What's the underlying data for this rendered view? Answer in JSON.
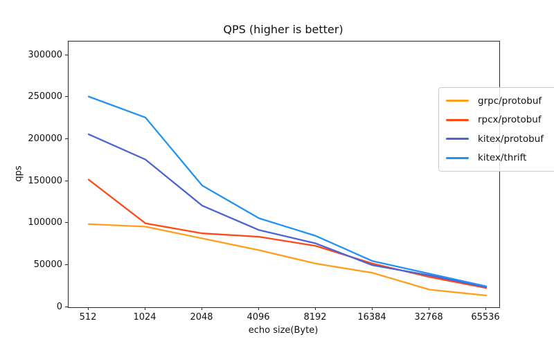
{
  "figure": {
    "background": "#ffffff",
    "text_color": "#111111",
    "spine_color": "#262626"
  },
  "chart_data": {
    "type": "line",
    "title": "QPS (higher is better)",
    "xlabel": "echo size(Byte)",
    "ylabel": "qps",
    "categories": [
      "512",
      "1024",
      "2048",
      "4096",
      "8192",
      "16384",
      "32768",
      "65536"
    ],
    "ytick_labels": [
      "0",
      "50000",
      "100000",
      "150000",
      "200000",
      "250000",
      "300000"
    ],
    "yticks": [
      0,
      50000,
      100000,
      150000,
      200000,
      250000,
      300000
    ],
    "ylim": [
      0,
      316500
    ],
    "grid": false,
    "legend_position": "upper right",
    "series": [
      {
        "name": "grpc/protobuf",
        "color": "#ff9e1b",
        "values": [
          99000,
          96000,
          82000,
          68000,
          52000,
          41000,
          21000,
          14000
        ]
      },
      {
        "name": "rpcx/protobuf",
        "color": "#ff4815",
        "values": [
          152000,
          100000,
          88000,
          84000,
          73000,
          52000,
          36000,
          23000
        ]
      },
      {
        "name": "kitex/protobuf",
        "color": "#4a64d4",
        "values": [
          206000,
          176000,
          121000,
          92000,
          76000,
          50000,
          38000,
          24000
        ]
      },
      {
        "name": "kitex/thrift",
        "color": "#2292f2",
        "values": [
          251000,
          226000,
          145000,
          106000,
          85000,
          55000,
          40000,
          25000
        ]
      }
    ]
  }
}
